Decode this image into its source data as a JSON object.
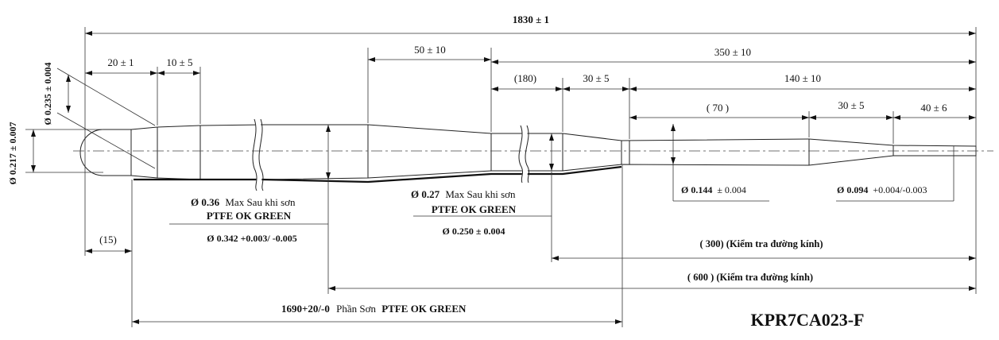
{
  "dims": {
    "total": "1830 ± 1",
    "d20": "20 ± 1",
    "d10": "10 ± 5",
    "d50": "50 ± 10",
    "d350": "350 ± 10",
    "d180": "(180)",
    "d30a": "30 ± 5",
    "d140": "140 ± 10",
    "d70": "( 70 )",
    "d30b": "30 ± 5",
    "d40": "40 ± 6",
    "d15": "(15)",
    "d300": "( 300)  (Kiểm tra đường kính)",
    "d600": "( 600 )  (Kiểm tra đường kính)"
  },
  "diameters": {
    "d235": "Ø 0.235 ± 0.004",
    "d217": "Ø 0.217 ± 0.007",
    "d036_value": "Ø 0.36",
    "d036_note": "Max Sau khi sơn",
    "d036_coat": "PTFE OK GREEN",
    "d0342": "Ø 0.342 +0.003/ -0.005",
    "d027_value": "Ø 0.27",
    "d027_note": "Max Sau khi sơn",
    "d027_coat": "PTFE OK GREEN",
    "d0250": "Ø 0.250 ± 0.004",
    "d0144_value": "Ø 0.144",
    "d0144_tol": "± 0.004",
    "d0094_value": "Ø 0.094",
    "d0094_tol": "+0.004/-0.003"
  },
  "coating": {
    "length": "1690+20/-0",
    "label": "Phần Sơn",
    "name": "PTFE OK GREEN"
  },
  "part_number": "KPR7CA023-F"
}
